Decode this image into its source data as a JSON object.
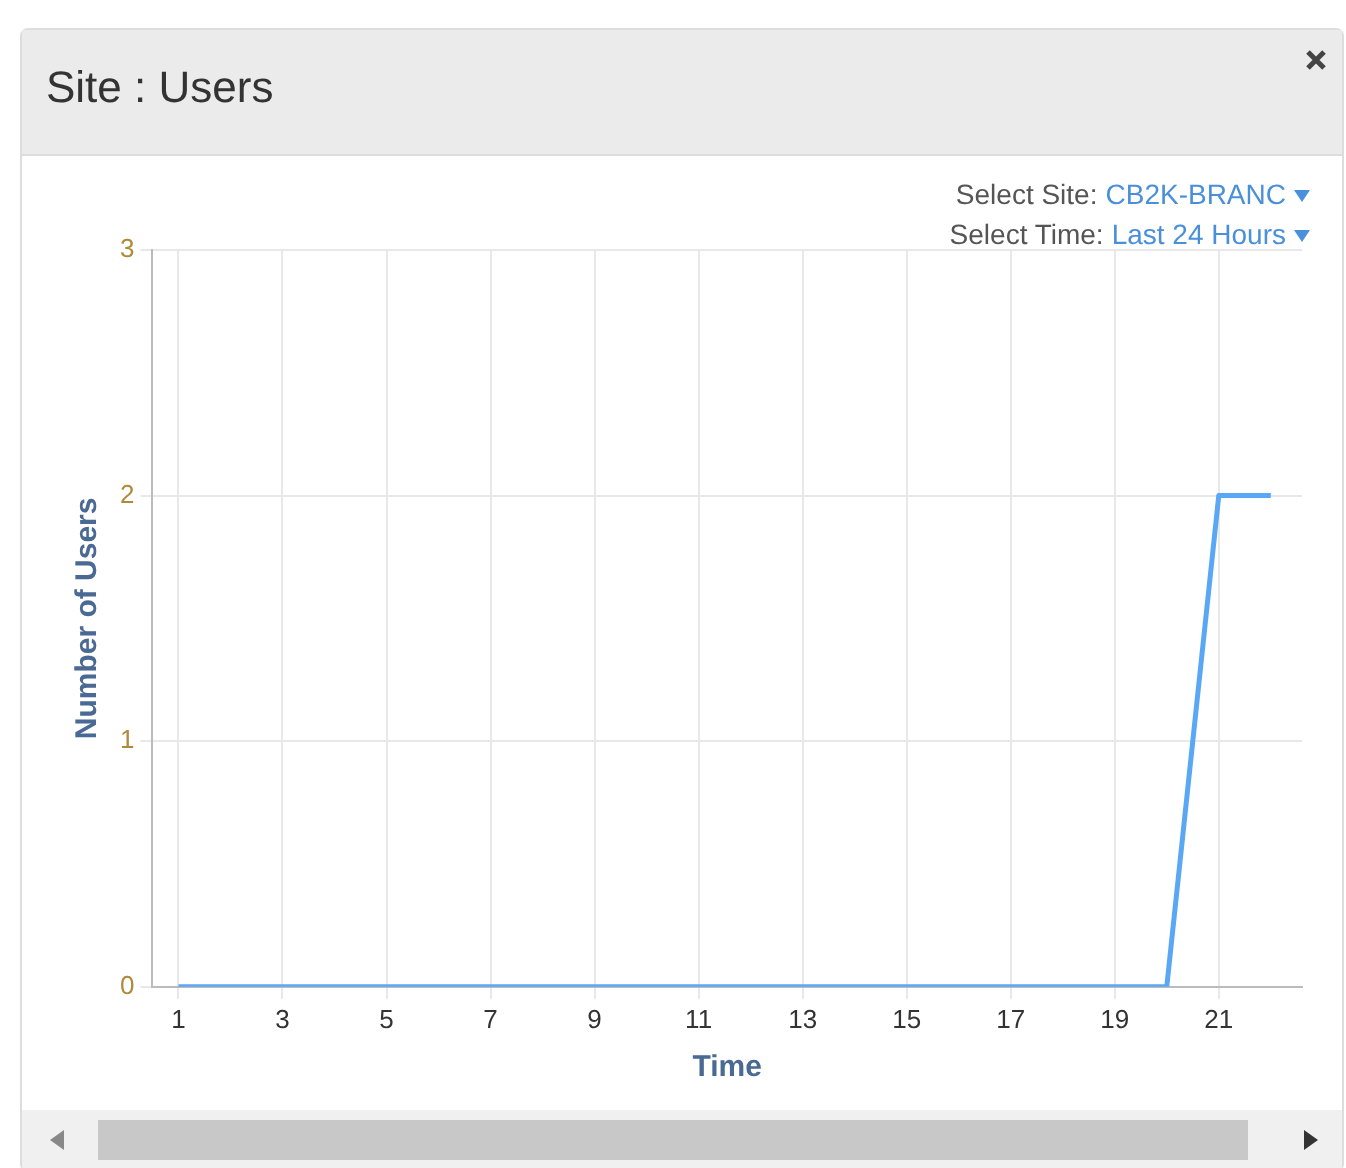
{
  "chart_data": {
    "type": "line",
    "title": "Site : Users",
    "xlabel": "Time",
    "ylabel": "Number of Users",
    "annotations": [
      "Select Site:",
      "CB2K-BRANC",
      "Select Time:",
      "Last 24 Hours"
    ],
    "x": [
      1,
      2,
      3,
      4,
      5,
      6,
      7,
      8,
      9,
      10,
      11,
      12,
      13,
      14,
      15,
      16,
      17,
      18,
      19,
      20,
      21,
      22
    ],
    "series": [
      {
        "color": "#5aa8f5",
        "values": [
          0,
          0,
          0,
          0,
          0,
          0,
          0,
          0,
          0,
          0,
          0,
          0,
          0,
          0,
          0,
          0,
          0,
          0,
          0,
          0,
          2,
          2
        ]
      }
    ],
    "xlim": [
      0.5,
      22.6
    ],
    "xticks": [
      1,
      3,
      5,
      7,
      9,
      11,
      13,
      15,
      17,
      19,
      21
    ],
    "ylim": [
      0,
      3
    ],
    "yticks": [
      0,
      1,
      2,
      3
    ],
    "grid": true,
    "legend": false,
    "marker": "none",
    "line_style": "solid"
  }
}
